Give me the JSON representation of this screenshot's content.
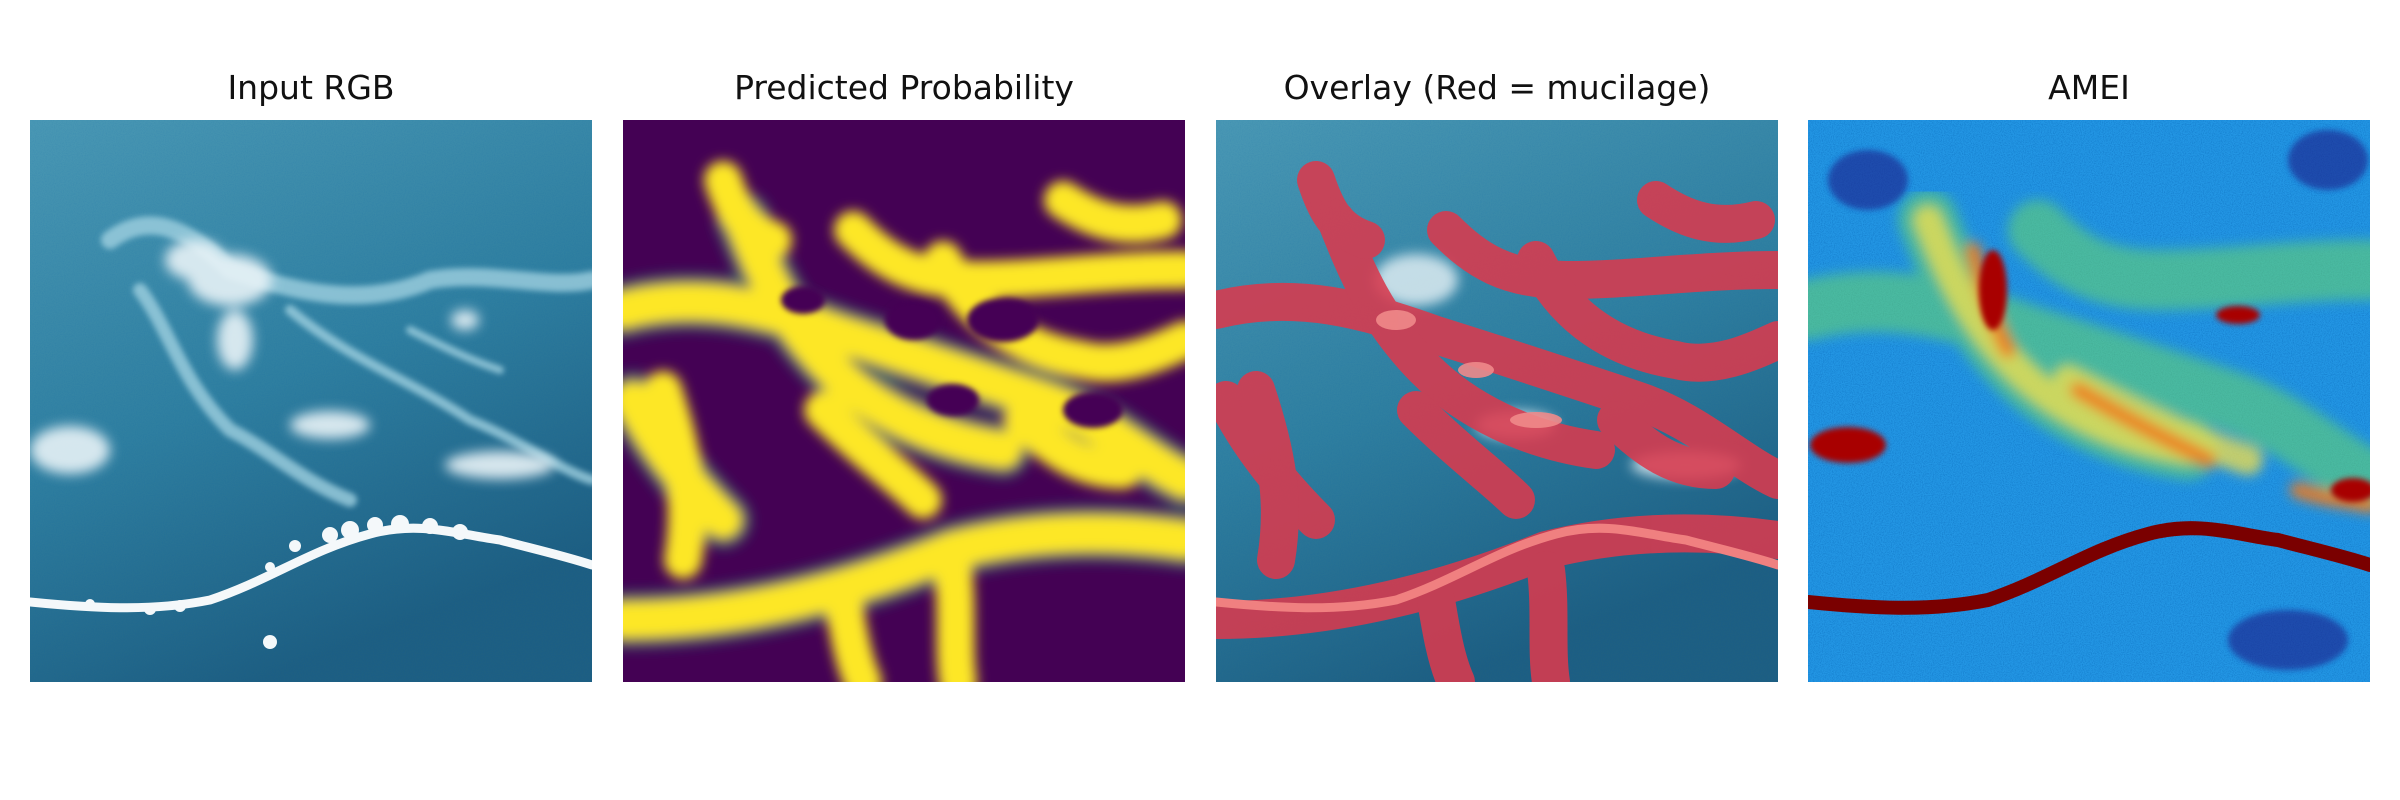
{
  "figure": {
    "panels": [
      {
        "id": "input",
        "title": "Input RGB"
      },
      {
        "id": "probability",
        "title": "Predicted Probability"
      },
      {
        "id": "overlay",
        "title": "Overlay (Red = mucilage)"
      },
      {
        "id": "amei",
        "title": "AMEI"
      }
    ]
  },
  "colors": {
    "sea_light": "#3f8fad",
    "sea_dark": "#1f5f82",
    "cloud": "#e6f1f5",
    "viridis_low": "#440154",
    "viridis_high": "#fde725",
    "overlay_red": "#d93a4e",
    "jet_dark_red": "#7a0000"
  }
}
